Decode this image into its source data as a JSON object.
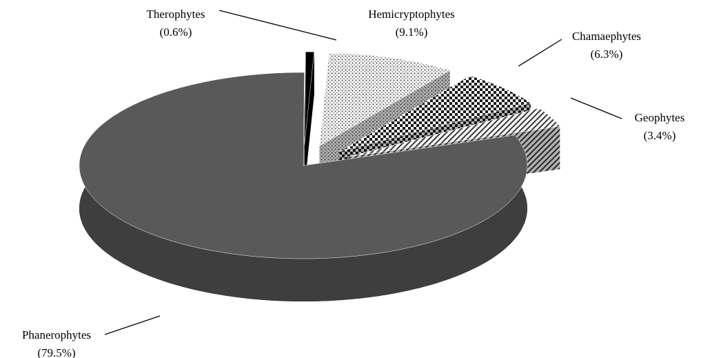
{
  "chart_data": {
    "type": "pie3d",
    "categories": [
      "Therophytes",
      "Hemicryptophytes",
      "Chamaephytes",
      "Geophytes",
      "Phanerophytes"
    ],
    "values": [
      0.6,
      9.1,
      6.3,
      3.4,
      79.5
    ],
    "value_labels": [
      "(0.6%)",
      "(9.1%)",
      "(6.3%)",
      "(3.4%)",
      "(79.5%)"
    ],
    "colors": [
      "#000000",
      "#6e6e6e",
      "#1a1a1a",
      "#404040",
      "#595959"
    ],
    "patterns": [
      "solid",
      "dots",
      "checker",
      "diagonal",
      "solid"
    ],
    "exploded": [
      true,
      true,
      true,
      true,
      false
    ]
  }
}
